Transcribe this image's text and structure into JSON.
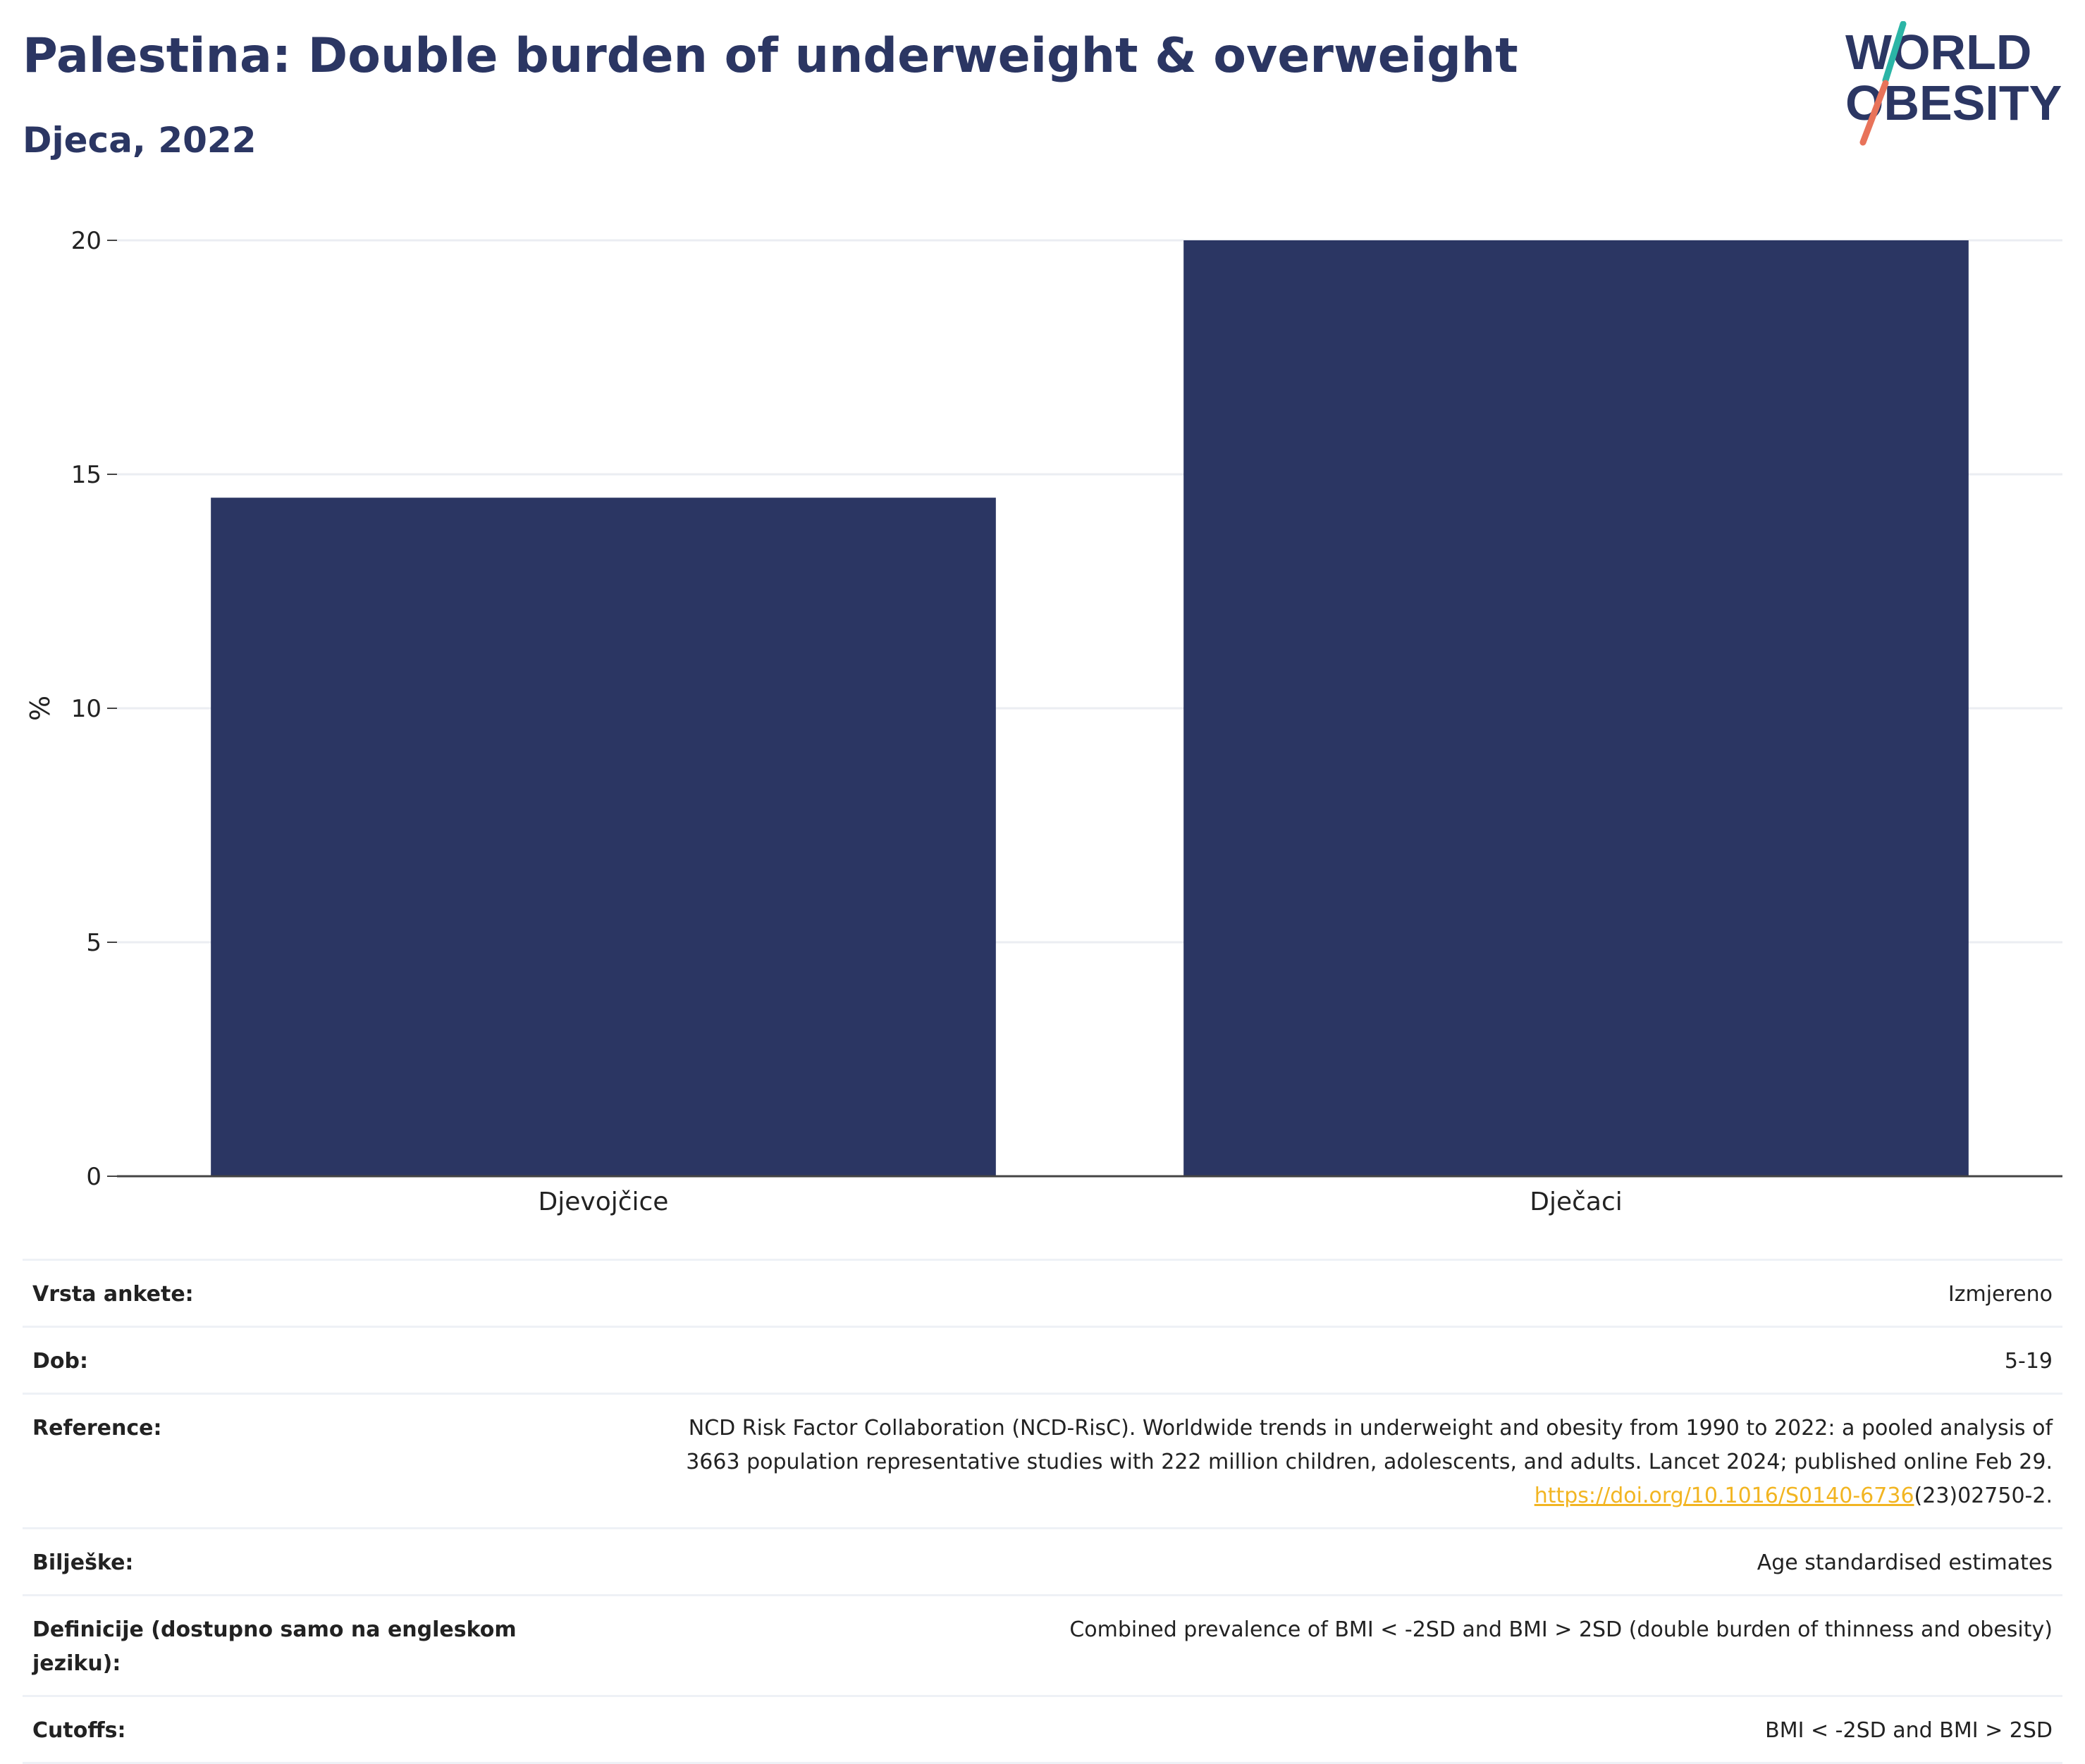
{
  "header": {
    "title": "Palestina: Double burden of underweight & overweight",
    "subtitle": "Djeca, 2022"
  },
  "logo": {
    "line1": "WORLD",
    "line2": "OBESITY",
    "colors": {
      "text": "#2b3663",
      "slash_top": "#2bb5a6",
      "slash_bottom": "#e8735a"
    }
  },
  "chart_data": {
    "type": "bar",
    "categories": [
      "Djevojčice",
      "Dječaci"
    ],
    "values": [
      14.5,
      20.0
    ],
    "ylabel": "%",
    "xlabel": "",
    "ylim": [
      0,
      20
    ],
    "yticks": [
      0,
      5,
      10,
      15,
      20
    ],
    "grid": true,
    "bar_color": "#2b3663"
  },
  "meta": {
    "rows": [
      {
        "label": "Vrsta ankete:",
        "value": "Izmjereno"
      },
      {
        "label": "Dob:",
        "value": "5-19"
      },
      {
        "label": "Reference:",
        "value_line1": "NCD Risk Factor Collaboration (NCD-RisC). Worldwide trends in underweight and obesity from 1990 to 2022: a pooled analysis of",
        "value_line2": "3663 population representative studies with 222 million children, adolescents, and adults. Lancet 2024; published online Feb 29.",
        "link_text": "https://doi.org/10.1016/S0140-6736",
        "link_suffix": "(23)02750-2."
      },
      {
        "label": "Bilješke:",
        "value": "Age standardised estimates"
      },
      {
        "label": "Definicije (dostupno samo na engleskom jeziku):",
        "value": "Combined prevalence of BMI < -2SD and BMI > 2SD (double burden of thinness and obesity)"
      },
      {
        "label": "Cutoffs:",
        "value": "BMI < -2SD and BMI > 2SD"
      }
    ],
    "link_color": "#f2b522"
  }
}
